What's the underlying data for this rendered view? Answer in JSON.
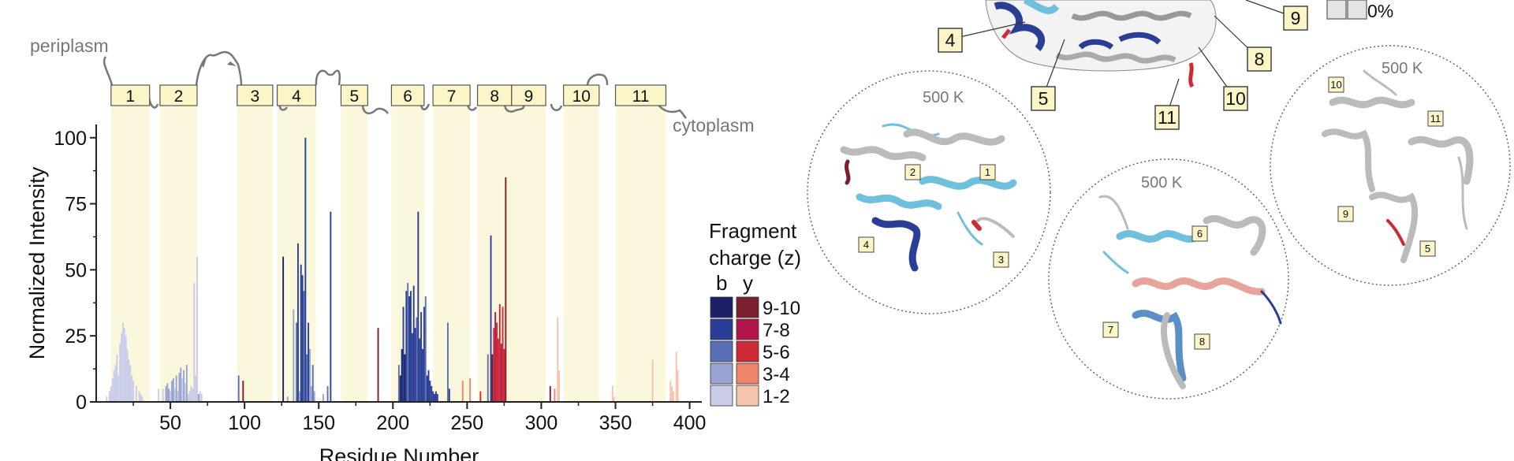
{
  "chart_data": {
    "type": "bar",
    "xlabel": "Residue Number",
    "ylabel": "Normalized Intensity",
    "xlim": [
      0,
      405
    ],
    "ylim": [
      0,
      105
    ],
    "xticks": [
      50,
      100,
      150,
      200,
      250,
      300,
      350,
      400
    ],
    "yticks": [
      0,
      25,
      50,
      75,
      100
    ],
    "topology_labels": {
      "top": "periplasm",
      "bottom": "cytoplasm"
    },
    "helices": [
      {
        "label": "1",
        "start": 10,
        "end": 36
      },
      {
        "label": "2",
        "start": 43,
        "end": 68
      },
      {
        "label": "3",
        "start": 95,
        "end": 119
      },
      {
        "label": "4",
        "start": 122,
        "end": 148
      },
      {
        "label": "5",
        "start": 165,
        "end": 183
      },
      {
        "label": "6",
        "start": 199,
        "end": 221
      },
      {
        "label": "7",
        "start": 227,
        "end": 252
      },
      {
        "label": "8",
        "start": 257,
        "end": 280
      },
      {
        "label": "9",
        "start": 280,
        "end": 303
      },
      {
        "label": "10",
        "start": 315,
        "end": 339
      },
      {
        "label": "11",
        "start": 350,
        "end": 384
      }
    ],
    "legend": {
      "title_line1": "Fragment",
      "title_line2": "charge (z)",
      "col_b": "b",
      "col_y": "y",
      "bins": [
        "9-10",
        "7-8",
        "5-6",
        "3-4",
        "1-2"
      ],
      "b_colors": [
        "#1c2167",
        "#2a3e96",
        "#5a70b4",
        "#98a4d3",
        "#c9cde8"
      ],
      "y_colors": [
        "#7a1f2e",
        "#b3144c",
        "#cd2a36",
        "#ec8569",
        "#f6c3ad"
      ]
    },
    "series": [
      {
        "ion": "b",
        "charge": "1-2",
        "residues": [
          7,
          9,
          10,
          11,
          12,
          13,
          14,
          15,
          16,
          17,
          18,
          19,
          20,
          21,
          22,
          23,
          24,
          25,
          27,
          29,
          30,
          31,
          42,
          45,
          50,
          53,
          55,
          58,
          60,
          62,
          63,
          64,
          65,
          66,
          67,
          68,
          70,
          71
        ],
        "values": [
          2,
          4,
          6,
          9,
          12,
          14,
          18,
          10,
          22,
          26,
          30,
          28,
          25,
          20,
          16,
          14,
          10,
          8,
          6,
          4,
          3,
          2,
          5,
          5,
          4,
          5,
          4,
          9,
          7,
          3,
          4,
          6,
          5,
          45,
          10,
          55,
          4,
          3
        ]
      },
      {
        "ion": "b",
        "charge": "3-4",
        "residues": [
          47,
          48,
          49,
          51,
          52,
          54,
          56,
          57,
          59,
          61,
          69,
          129,
          133,
          137,
          144,
          145,
          147,
          153
        ],
        "values": [
          6,
          7,
          5,
          8,
          9,
          10,
          11,
          13,
          12,
          14,
          3,
          2,
          35,
          4,
          20,
          6,
          4,
          3
        ]
      },
      {
        "ion": "b",
        "charge": "5-6",
        "residues": [
          96,
          135,
          140,
          142,
          146,
          156,
          204,
          210,
          216,
          222,
          237,
          264
        ],
        "values": [
          10,
          30,
          42,
          18,
          14,
          6,
          14,
          45,
          32,
          40,
          30,
          18
        ]
      },
      {
        "ion": "b",
        "charge": "7-8",
        "residues": [
          136,
          138,
          139,
          141,
          143,
          158,
          207,
          209,
          211,
          212,
          213,
          214,
          215,
          217,
          218,
          219,
          220,
          221,
          223,
          224,
          225,
          226,
          227,
          228,
          229,
          230,
          238,
          266
        ],
        "values": [
          60,
          52,
          48,
          100,
          30,
          72,
          36,
          42,
          40,
          42,
          26,
          44,
          28,
          72,
          24,
          34,
          20,
          36,
          10,
          12,
          8,
          6,
          4,
          3,
          4,
          3,
          5,
          63
        ]
      },
      {
        "ion": "b",
        "charge": "9-10",
        "residues": [
          126,
          205,
          206,
          208
        ],
        "values": [
          55,
          10,
          20,
          18
        ]
      },
      {
        "ion": "y",
        "charge": "1-2",
        "residues": [
          311,
          312,
          348,
          349,
          375,
          387,
          388,
          389,
          391,
          392
        ],
        "values": [
          32,
          12,
          6,
          2,
          16,
          8,
          6,
          4,
          19,
          12
        ]
      },
      {
        "ion": "y",
        "charge": "3-4",
        "residues": [
          247,
          252,
          309
        ],
        "values": [
          8,
          9,
          5
        ]
      },
      {
        "ion": "y",
        "charge": "5-6",
        "residues": [
          259,
          268,
          270,
          271,
          272,
          274,
          275
        ],
        "values": [
          4,
          28,
          30,
          24,
          37,
          36,
          20
        ]
      },
      {
        "ion": "y",
        "charge": "7-8",
        "residues": [
          269,
          273
        ],
        "values": [
          34,
          22
        ]
      },
      {
        "ion": "y",
        "charge": "9-10",
        "residues": [
          99,
          190,
          267,
          276,
          306
        ],
        "values": [
          8,
          28,
          18,
          85,
          6
        ]
      }
    ]
  },
  "structures": {
    "main_labels": [
      "4",
      "5",
      "9",
      "8",
      "10",
      "11"
    ],
    "scale_text": "0%",
    "circles": [
      {
        "title": "500 K",
        "labels": [
          "1",
          "2",
          "3",
          "4"
        ]
      },
      {
        "title": "500 K",
        "labels": [
          "6",
          "7",
          "8"
        ]
      },
      {
        "title": "500 K",
        "labels": [
          "10",
          "11",
          "9",
          "5"
        ]
      }
    ]
  }
}
